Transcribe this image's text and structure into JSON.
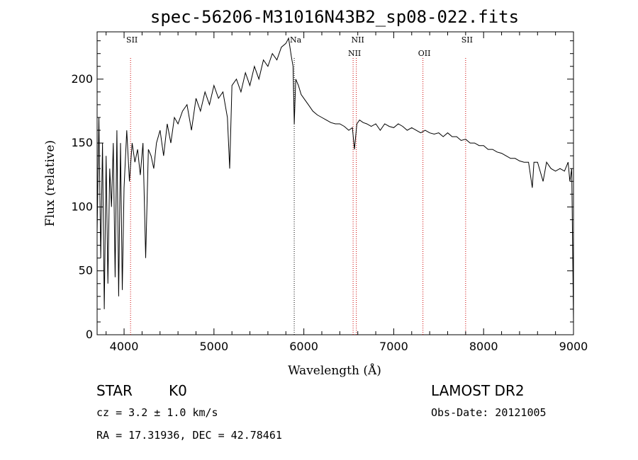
{
  "chart_data": {
    "type": "line",
    "title": "spec-56206-M31016N43B2_sp08-022.fits",
    "xlabel": "Wavelength (Å)",
    "ylabel": "Flux (relative)",
    "xlim": [
      3700,
      9000
    ],
    "ylim": [
      0,
      237
    ],
    "xticks": [
      4000,
      5000,
      6000,
      7000,
      8000,
      9000
    ],
    "yticks": [
      0,
      50,
      100,
      150,
      200
    ],
    "grid": false,
    "colors": {
      "spectrum": "#000000",
      "emission_lines": "#cc0000",
      "absorption_lines": "#000000"
    },
    "series": [
      {
        "x": [
          3700,
          3720,
          3740,
          3760,
          3780,
          3800,
          3820,
          3840,
          3860,
          3880,
          3900,
          3920,
          3940,
          3960,
          3980,
          4000,
          4030,
          4060,
          4090,
          4120,
          4150,
          4180,
          4210,
          4240,
          4270,
          4300,
          4330,
          4360,
          4400,
          4440,
          4480,
          4520,
          4560,
          4600,
          4650,
          4700,
          4750,
          4800,
          4850,
          4900,
          4950,
          5000,
          5050,
          5100,
          5150,
          5175,
          5200,
          5250,
          5300,
          5350,
          5400,
          5450,
          5500,
          5550,
          5600,
          5650,
          5700,
          5750,
          5800,
          5830,
          5860,
          5880,
          5893,
          5910,
          5940,
          5970,
          6000,
          6050,
          6100,
          6150,
          6200,
          6250,
          6300,
          6350,
          6400,
          6450,
          6500,
          6540,
          6563,
          6590,
          6620,
          6660,
          6700,
          6750,
          6800,
          6850,
          6900,
          6950,
          7000,
          7050,
          7100,
          7150,
          7200,
          7250,
          7300,
          7350,
          7400,
          7450,
          7500,
          7550,
          7600,
          7650,
          7700,
          7750,
          7800,
          7850,
          7900,
          7950,
          8000,
          8050,
          8100,
          8150,
          8200,
          8250,
          8300,
          8350,
          8400,
          8450,
          8500,
          8542,
          8560,
          8600,
          8662,
          8700,
          8750,
          8800,
          8850,
          8900,
          8940,
          8960,
          8980,
          9000
        ],
        "y": [
          80,
          170,
          60,
          150,
          20,
          140,
          40,
          130,
          100,
          150,
          45,
          160,
          30,
          150,
          35,
          115,
          160,
          120,
          150,
          135,
          145,
          125,
          150,
          60,
          145,
          140,
          130,
          150,
          160,
          140,
          165,
          150,
          170,
          165,
          175,
          180,
          160,
          185,
          175,
          190,
          180,
          195,
          185,
          190,
          170,
          130,
          195,
          200,
          190,
          205,
          195,
          210,
          200,
          215,
          210,
          220,
          215,
          225,
          228,
          232,
          218,
          210,
          165,
          200,
          195,
          188,
          185,
          180,
          175,
          172,
          170,
          168,
          166,
          165,
          165,
          163,
          160,
          162,
          145,
          165,
          168,
          166,
          165,
          163,
          165,
          160,
          165,
          163,
          162,
          165,
          163,
          160,
          162,
          160,
          158,
          160,
          158,
          157,
          158,
          155,
          158,
          155,
          155,
          152,
          153,
          150,
          150,
          148,
          148,
          145,
          145,
          143,
          142,
          140,
          138,
          138,
          136,
          135,
          135,
          115,
          135,
          135,
          120,
          135,
          130,
          128,
          130,
          128,
          135,
          120,
          130,
          10
        ]
      }
    ],
    "lines": [
      {
        "label": "SII",
        "x": 4072,
        "kind": "emission"
      },
      {
        "label": "Na",
        "x": 5893,
        "kind": "absorption"
      },
      {
        "label": "NII",
        "x": 6548,
        "kind": "emission"
      },
      {
        "label": "NII",
        "x": 6584,
        "kind": "emission"
      },
      {
        "label": "OII",
        "x": 7325,
        "kind": "emission"
      },
      {
        "label": "SII",
        "x": 7800,
        "kind": "emission"
      }
    ]
  },
  "info": {
    "class_label": "STAR",
    "subclass": "K0",
    "cz": "cz = 3.2 ± 1.0 km/s",
    "coords": "RA =  17.31936, DEC =  42.78461",
    "survey": "LAMOST DR2",
    "obs_date": "Obs-Date: 20121005"
  }
}
